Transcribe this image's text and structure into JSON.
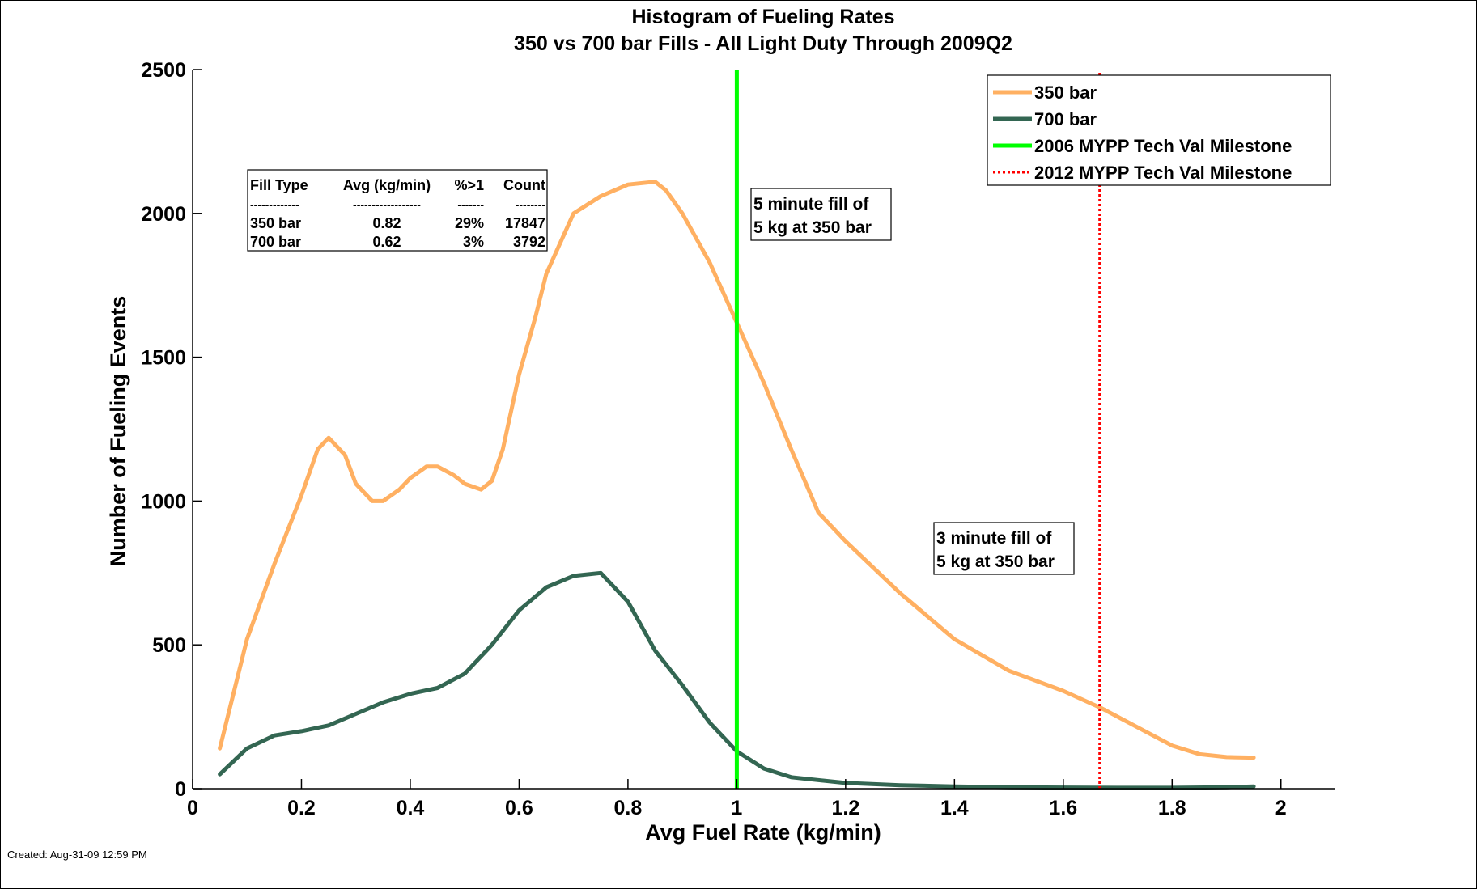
{
  "chart_data": {
    "type": "line",
    "title": "Histogram of Fueling Rates",
    "subtitle": "350 vs 700 bar Fills - All Light Duty Through 2009Q2",
    "xlabel": "Avg Fuel Rate (kg/min)",
    "ylabel": "Number of Fueling Events",
    "xlim": [
      0,
      2.1
    ],
    "ylim": [
      0,
      2500
    ],
    "xticks": [
      0,
      0.2,
      0.4,
      0.6,
      0.8,
      1,
      1.2,
      1.4,
      1.6,
      1.8,
      2
    ],
    "xtick_labels": [
      "0",
      "0.2",
      "0.4",
      "0.6",
      "0.8",
      "1",
      "1.2",
      "1.4",
      "1.6",
      "1.8",
      "2"
    ],
    "yticks": [
      0,
      500,
      1000,
      1500,
      2000,
      2500
    ],
    "ytick_labels": [
      "0",
      "500",
      "1000",
      "1500",
      "2000",
      "2500"
    ],
    "grid": false,
    "legend_position": "top-right",
    "series": [
      {
        "name": "350 bar",
        "color": "#ffb062",
        "x": [
          0.05,
          0.1,
          0.15,
          0.2,
          0.23,
          0.25,
          0.28,
          0.3,
          0.33,
          0.35,
          0.38,
          0.4,
          0.43,
          0.45,
          0.48,
          0.5,
          0.53,
          0.55,
          0.57,
          0.6,
          0.63,
          0.65,
          0.7,
          0.75,
          0.8,
          0.85,
          0.87,
          0.9,
          0.95,
          1.0,
          1.05,
          1.1,
          1.15,
          1.2,
          1.3,
          1.4,
          1.5,
          1.6,
          1.67,
          1.7,
          1.75,
          1.8,
          1.85,
          1.9,
          1.95
        ],
        "values": [
          140,
          520,
          780,
          1020,
          1180,
          1220,
          1160,
          1060,
          1000,
          1000,
          1040,
          1080,
          1120,
          1120,
          1090,
          1060,
          1040,
          1070,
          1180,
          1440,
          1640,
          1790,
          2000,
          2060,
          2100,
          2110,
          2080,
          2000,
          1830,
          1620,
          1410,
          1180,
          960,
          860,
          680,
          520,
          410,
          340,
          280,
          250,
          200,
          150,
          120,
          110,
          108
        ]
      },
      {
        "name": "700 bar",
        "color": "#336652",
        "x": [
          0.05,
          0.1,
          0.15,
          0.2,
          0.25,
          0.3,
          0.35,
          0.4,
          0.45,
          0.5,
          0.55,
          0.6,
          0.65,
          0.7,
          0.75,
          0.8,
          0.85,
          0.9,
          0.95,
          1.0,
          1.05,
          1.1,
          1.2,
          1.3,
          1.4,
          1.5,
          1.6,
          1.7,
          1.8,
          1.9,
          1.95
        ],
        "values": [
          50,
          140,
          185,
          200,
          220,
          260,
          300,
          330,
          350,
          400,
          500,
          620,
          700,
          740,
          750,
          650,
          480,
          360,
          230,
          130,
          70,
          40,
          20,
          12,
          8,
          5,
          4,
          3,
          3,
          5,
          8
        ]
      },
      {
        "name": "2006 MYPP Tech Val Milestone",
        "color": "#00ff00",
        "x": [
          1.0,
          1.0
        ],
        "values": [
          0,
          2500
        ]
      },
      {
        "name": "2012 MYPP Tech Val Milestone",
        "color": "#ff0000",
        "x": [
          1.6667,
          1.6667
        ],
        "values": [
          0,
          2500
        ]
      }
    ],
    "annotations": [
      {
        "lines": [
          "5 minute fill of",
          "5 kg at 350 bar"
        ]
      },
      {
        "lines": [
          "3 minute fill of",
          "5 kg at 350 bar"
        ]
      }
    ],
    "stats_table": {
      "headers": [
        "Fill Type",
        "Avg (kg/min)",
        "%>1",
        "Count"
      ],
      "separator": [
        "-------------",
        "------------------",
        "-------",
        "--------"
      ],
      "rows": [
        [
          "350 bar",
          "0.82",
          "29%",
          "17847"
        ],
        [
          "700 bar",
          "0.62",
          "3%",
          "3792"
        ]
      ]
    }
  },
  "footer": {
    "created": "Created: Aug-31-09 12:59 PM"
  }
}
